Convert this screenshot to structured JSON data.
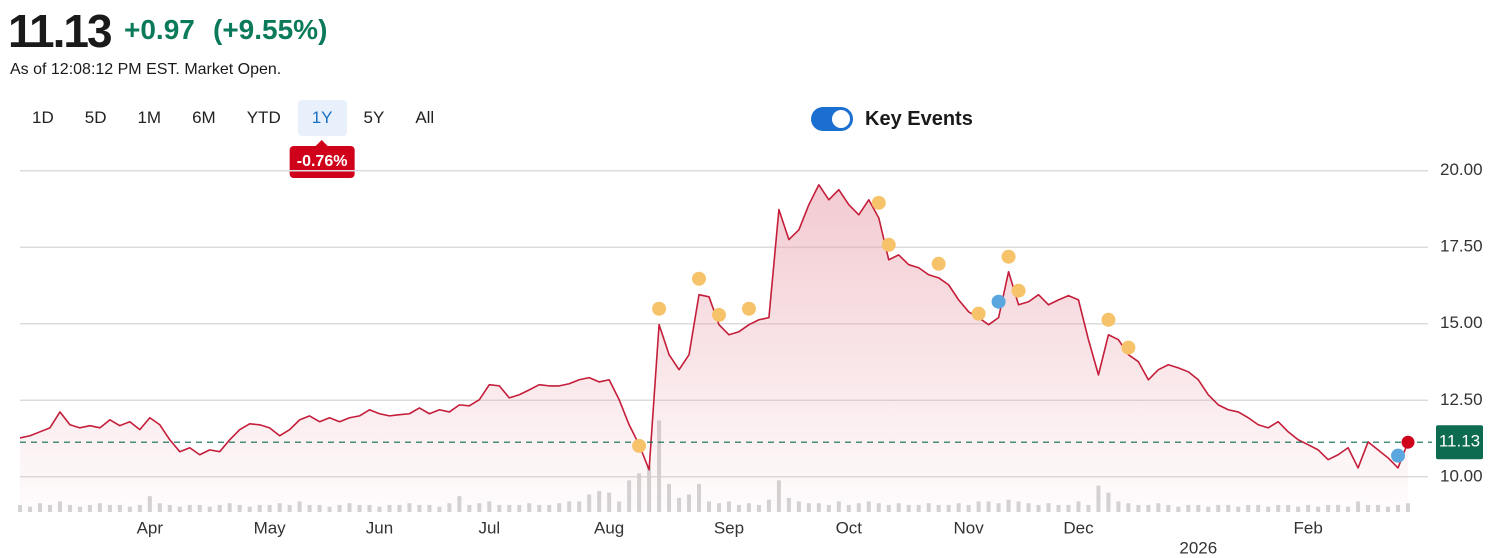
{
  "header": {
    "price": "11.13",
    "change": "+0.97",
    "change_pct": "(+9.55%)",
    "as_of": "As of 12:08:12 PM EST. Market Open."
  },
  "range_buttons": [
    "1D",
    "5D",
    "1M",
    "6M",
    "YTD",
    "1Y",
    "5Y",
    "All"
  ],
  "selected": "1Y",
  "range_change": "-0.76%",
  "key_events": {
    "label": "Key Events",
    "enabled": true
  },
  "chart_data": {
    "type": "line",
    "categories": [
      null,
      null,
      null,
      null,
      null,
      null,
      null,
      null,
      null,
      null,
      null,
      null,
      null,
      "Apr",
      null,
      null,
      null,
      null,
      null,
      null,
      null,
      null,
      null,
      null,
      null,
      "May",
      null,
      null,
      null,
      null,
      null,
      null,
      null,
      null,
      null,
      null,
      "Jun",
      null,
      null,
      null,
      null,
      null,
      null,
      null,
      null,
      null,
      null,
      "Jul",
      null,
      null,
      null,
      null,
      null,
      null,
      null,
      null,
      null,
      null,
      null,
      "Aug",
      null,
      null,
      null,
      null,
      null,
      null,
      null,
      null,
      null,
      null,
      null,
      "Sep",
      null,
      null,
      null,
      null,
      null,
      null,
      null,
      null,
      null,
      null,
      null,
      "Oct",
      null,
      null,
      null,
      null,
      null,
      null,
      null,
      null,
      null,
      null,
      null,
      "Nov",
      null,
      null,
      null,
      null,
      null,
      null,
      null,
      null,
      null,
      null,
      "Dec",
      null,
      null,
      null,
      null,
      null,
      null,
      null,
      null,
      null,
      null,
      null,
      null,
      null,
      null,
      null,
      null,
      null,
      null,
      null,
      null,
      null,
      null,
      "Feb",
      null,
      null,
      null,
      null,
      null,
      null,
      null,
      null,
      null,
      null
    ],
    "sublabels": [
      null,
      null,
      null,
      null,
      null,
      null,
      null,
      null,
      null,
      null,
      null,
      null,
      null,
      null,
      null,
      null,
      null,
      null,
      null,
      null,
      null,
      null,
      null,
      null,
      null,
      null,
      null,
      null,
      null,
      null,
      null,
      null,
      null,
      null,
      null,
      null,
      null,
      null,
      null,
      null,
      null,
      null,
      null,
      null,
      null,
      null,
      null,
      null,
      null,
      null,
      null,
      null,
      null,
      null,
      null,
      null,
      null,
      null,
      null,
      null,
      null,
      null,
      null,
      null,
      null,
      null,
      null,
      null,
      null,
      null,
      null,
      null,
      null,
      null,
      null,
      null,
      null,
      null,
      null,
      null,
      null,
      null,
      null,
      null,
      null,
      null,
      null,
      null,
      null,
      null,
      null,
      null,
      null,
      null,
      null,
      null,
      null,
      null,
      null,
      null,
      null,
      null,
      null,
      null,
      null,
      null,
      null,
      null,
      null,
      null,
      null,
      null,
      null,
      null,
      null,
      null,
      null,
      null,
      "2026",
      null,
      null,
      null,
      null,
      null,
      null,
      null,
      null,
      null,
      null,
      null,
      null,
      null,
      null,
      null,
      null,
      null,
      null,
      null,
      null,
      null
    ],
    "series": [
      {
        "kind": "line",
        "color": "#c41e3a",
        "values": [
          11.27,
          11.34,
          11.47,
          11.6,
          12.12,
          11.7,
          11.6,
          11.67,
          11.6,
          11.86,
          11.67,
          11.8,
          11.54,
          11.93,
          11.7,
          11.21,
          10.82,
          10.95,
          10.72,
          10.88,
          10.82,
          11.21,
          11.54,
          11.73,
          11.7,
          11.6,
          11.34,
          11.54,
          11.86,
          11.99,
          11.8,
          11.93,
          11.8,
          11.93,
          11.99,
          12.19,
          12.06,
          11.99,
          12.03,
          12.06,
          12.25,
          12.06,
          12.19,
          12.12,
          12.35,
          12.32,
          12.52,
          13.01,
          12.97,
          12.58,
          12.68,
          12.84,
          13.01,
          12.97,
          12.97,
          13.04,
          13.17,
          13.24,
          13.1,
          13.17,
          12.52,
          11.7,
          11.05,
          10.23,
          14.97,
          13.99,
          13.5,
          13.99,
          15.95,
          15.88,
          14.97,
          14.64,
          14.74,
          14.97,
          15.13,
          15.2,
          18.73,
          17.75,
          18.07,
          18.89,
          19.54,
          19.05,
          19.38,
          18.89,
          18.56,
          19.05,
          18.46,
          17.09,
          17.25,
          16.93,
          16.83,
          16.6,
          16.5,
          16.27,
          15.78,
          15.39,
          15.2,
          14.97,
          15.2,
          16.7,
          15.62,
          15.72,
          15.95,
          15.62,
          15.78,
          15.92,
          15.78,
          14.48,
          13.33,
          14.64,
          14.48,
          13.99,
          13.76,
          13.17,
          13.5,
          13.66,
          13.56,
          13.43,
          13.17,
          12.68,
          12.35,
          12.19,
          12.12,
          11.93,
          11.7,
          11.6,
          11.8,
          11.47,
          11.21,
          11.05,
          10.88,
          10.56,
          10.72,
          10.95,
          10.29,
          11.14,
          10.88,
          10.62,
          10.29,
          11.13
        ]
      },
      {
        "kind": "event",
        "color": "#f6c36b",
        "values": [
          null,
          null,
          null,
          null,
          null,
          null,
          null,
          null,
          null,
          null,
          null,
          null,
          null,
          null,
          null,
          null,
          null,
          null,
          null,
          null,
          null,
          null,
          null,
          null,
          null,
          null,
          null,
          null,
          null,
          null,
          null,
          null,
          null,
          null,
          null,
          null,
          null,
          null,
          null,
          null,
          null,
          null,
          null,
          null,
          null,
          null,
          null,
          null,
          null,
          null,
          null,
          null,
          null,
          null,
          null,
          null,
          null,
          null,
          null,
          null,
          null,
          null,
          11.01,
          null,
          15.49,
          null,
          null,
          null,
          16.47,
          null,
          15.29,
          null,
          null,
          15.49,
          null,
          null,
          null,
          null,
          null,
          null,
          null,
          null,
          null,
          null,
          null,
          null,
          18.95,
          17.58,
          null,
          null,
          null,
          null,
          16.96,
          null,
          null,
          null,
          15.33,
          null,
          null,
          17.19,
          16.08,
          null,
          null,
          null,
          null,
          null,
          null,
          null,
          null,
          15.13,
          null,
          14.22,
          null,
          null,
          null,
          null,
          null,
          null,
          null,
          null,
          null,
          null,
          null,
          null,
          null,
          null,
          null,
          null,
          null,
          null,
          null,
          null,
          null,
          null,
          null,
          null,
          null,
          null,
          null,
          null
        ]
      },
      {
        "kind": "event",
        "color": "#5aa6de",
        "values": [
          null,
          null,
          null,
          null,
          null,
          null,
          null,
          null,
          null,
          null,
          null,
          null,
          null,
          null,
          null,
          null,
          null,
          null,
          null,
          null,
          null,
          null,
          null,
          null,
          null,
          null,
          null,
          null,
          null,
          null,
          null,
          null,
          null,
          null,
          null,
          null,
          null,
          null,
          null,
          null,
          null,
          null,
          null,
          null,
          null,
          null,
          null,
          null,
          null,
          null,
          null,
          null,
          null,
          null,
          null,
          null,
          null,
          null,
          null,
          null,
          null,
          null,
          null,
          null,
          null,
          null,
          null,
          null,
          null,
          null,
          null,
          null,
          null,
          null,
          null,
          null,
          null,
          null,
          null,
          null,
          null,
          null,
          null,
          null,
          null,
          null,
          null,
          null,
          null,
          null,
          null,
          null,
          null,
          null,
          null,
          null,
          null,
          null,
          15.72,
          null,
          null,
          null,
          null,
          null,
          null,
          null,
          null,
          null,
          null,
          null,
          null,
          null,
          null,
          null,
          null,
          null,
          null,
          null,
          null,
          null,
          null,
          null,
          null,
          null,
          null,
          null,
          null,
          null,
          null,
          null,
          null,
          null,
          null,
          null,
          null,
          null,
          null,
          null,
          10.69,
          null
        ]
      },
      {
        "kind": "volume",
        "axis": "y2",
        "color": "#d3d3d3",
        "values": [
          0.2,
          0.15,
          0.25,
          0.2,
          0.3,
          0.2,
          0.15,
          0.2,
          0.25,
          0.2,
          0.2,
          0.15,
          0.2,
          0.45,
          0.25,
          0.2,
          0.15,
          0.2,
          0.2,
          0.15,
          0.2,
          0.25,
          0.2,
          0.15,
          0.2,
          0.2,
          0.25,
          0.2,
          0.3,
          0.2,
          0.2,
          0.15,
          0.2,
          0.25,
          0.2,
          0.2,
          0.15,
          0.2,
          0.2,
          0.25,
          0.2,
          0.2,
          0.15,
          0.25,
          0.45,
          0.2,
          0.25,
          0.3,
          0.2,
          0.2,
          0.2,
          0.25,
          0.2,
          0.2,
          0.25,
          0.3,
          0.3,
          0.5,
          0.6,
          0.55,
          0.3,
          0.9,
          1.1,
          1.3,
          2.6,
          0.8,
          0.4,
          0.5,
          0.8,
          0.3,
          0.25,
          0.3,
          0.2,
          0.25,
          0.2,
          0.35,
          0.9,
          0.4,
          0.3,
          0.25,
          0.25,
          0.2,
          0.3,
          0.2,
          0.25,
          0.3,
          0.25,
          0.2,
          0.25,
          0.2,
          0.2,
          0.25,
          0.2,
          0.2,
          0.25,
          0.2,
          0.3,
          0.3,
          0.25,
          0.35,
          0.3,
          0.25,
          0.2,
          0.25,
          0.2,
          0.2,
          0.3,
          0.2,
          0.75,
          0.55,
          0.3,
          0.25,
          0.2,
          0.2,
          0.25,
          0.2,
          0.15,
          0.2,
          0.2,
          0.15,
          0.2,
          0.2,
          0.15,
          0.2,
          0.2,
          0.15,
          0.2,
          0.2,
          0.15,
          0.2,
          0.15,
          0.2,
          0.2,
          0.15,
          0.3,
          0.2,
          0.2,
          0.15,
          0.2,
          0.25
        ]
      }
    ],
    "ylim": [
      8.85,
      20.35
    ],
    "yticks": [
      {
        "value": 10,
        "label": "10.00"
      },
      {
        "value": 12.5,
        "label": "12.50"
      },
      {
        "value": 15,
        "label": "15.00"
      },
      {
        "value": 17.5,
        "label": "17.50"
      },
      {
        "value": 20,
        "label": "20.00"
      }
    ],
    "y2lim": [
      0,
      10
    ],
    "grid": true,
    "current_price": {
      "value": 11.13,
      "label": "11.13"
    },
    "current_color": "#0d6b50",
    "last_dot_color": "#d0021b"
  }
}
